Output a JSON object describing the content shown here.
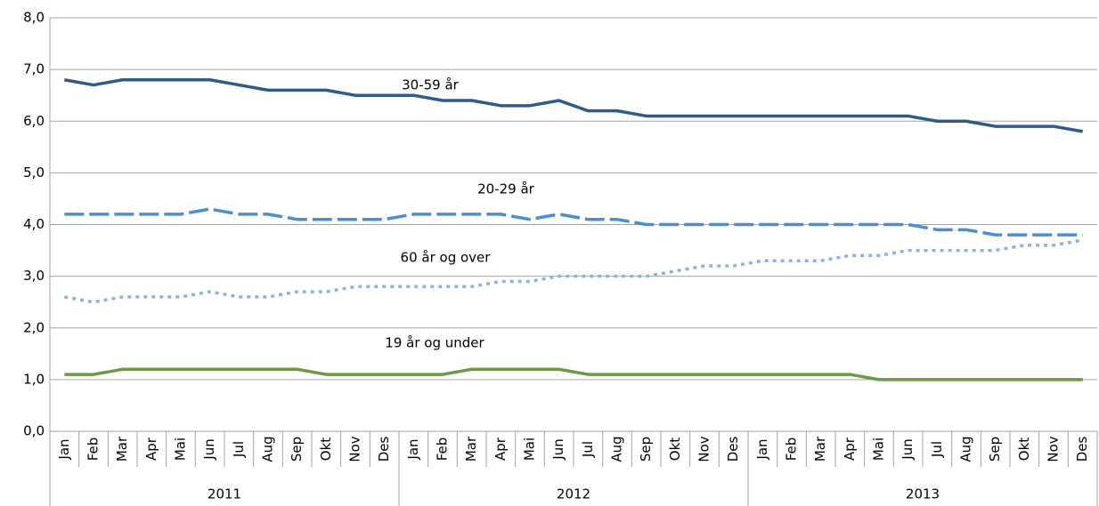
{
  "chart_data": {
    "type": "line",
    "categories": [
      "Jan",
      "Feb",
      "Mar",
      "Apr",
      "Mai",
      "Jun",
      "Jul",
      "Aug",
      "Sep",
      "Okt",
      "Nov",
      "Des",
      "Jan",
      "Feb",
      "Mar",
      "Apr",
      "Mai",
      "Jun",
      "Jul",
      "Aug",
      "Sep",
      "Okt",
      "Nov",
      "Des",
      "Jan",
      "Feb",
      "Mar",
      "Apr",
      "Mai",
      "Jun",
      "Jul",
      "Aug",
      "Sep",
      "Okt",
      "Nov",
      "Des"
    ],
    "category_groups": [
      "2011",
      "2012",
      "2013"
    ],
    "series": [
      {
        "name": "30-59 år",
        "color": "#2f5b8a",
        "line_style": "solid",
        "values": [
          6.8,
          6.7,
          6.8,
          6.8,
          6.8,
          6.8,
          6.7,
          6.6,
          6.6,
          6.6,
          6.5,
          6.5,
          6.5,
          6.4,
          6.4,
          6.3,
          6.3,
          6.4,
          6.2,
          6.2,
          6.1,
          6.1,
          6.1,
          6.1,
          6.1,
          6.1,
          6.1,
          6.1,
          6.1,
          6.1,
          6.0,
          6.0,
          5.9,
          5.9,
          5.9,
          5.8
        ]
      },
      {
        "name": "20-29 år",
        "color": "#4a8fd0",
        "line_style": "dashed",
        "values": [
          4.2,
          4.2,
          4.2,
          4.2,
          4.2,
          4.3,
          4.2,
          4.2,
          4.1,
          4.1,
          4.1,
          4.1,
          4.2,
          4.2,
          4.2,
          4.2,
          4.1,
          4.2,
          4.1,
          4.1,
          4.0,
          4.0,
          4.0,
          4.0,
          4.0,
          4.0,
          4.0,
          4.0,
          4.0,
          4.0,
          3.9,
          3.9,
          3.8,
          3.8,
          3.8,
          3.8
        ]
      },
      {
        "name": "60 år og over",
        "color": "#8fb2de",
        "line_style": "dotted",
        "values": [
          2.6,
          2.5,
          2.6,
          2.6,
          2.6,
          2.7,
          2.6,
          2.6,
          2.7,
          2.7,
          2.8,
          2.8,
          2.8,
          2.8,
          2.8,
          2.9,
          2.9,
          3.0,
          3.0,
          3.0,
          3.0,
          3.1,
          3.2,
          3.2,
          3.3,
          3.3,
          3.3,
          3.4,
          3.4,
          3.5,
          3.5,
          3.5,
          3.5,
          3.6,
          3.6,
          3.7
        ]
      },
      {
        "name": "19 år og under",
        "color": "#6e9a48",
        "line_style": "solid",
        "values": [
          1.1,
          1.1,
          1.2,
          1.2,
          1.2,
          1.2,
          1.2,
          1.2,
          1.2,
          1.1,
          1.1,
          1.1,
          1.1,
          1.1,
          1.2,
          1.2,
          1.2,
          1.2,
          1.1,
          1.1,
          1.1,
          1.1,
          1.1,
          1.1,
          1.1,
          1.1,
          1.1,
          1.1,
          1.0,
          1.0,
          1.0,
          1.0,
          1.0,
          1.0,
          1.0,
          1.0
        ]
      }
    ],
    "ylim": [
      0,
      8
    ],
    "yticks": [
      {
        "value": 0,
        "label": "0,0"
      },
      {
        "value": 1,
        "label": "1,0"
      },
      {
        "value": 2,
        "label": "2,0"
      },
      {
        "value": 3,
        "label": "3,0"
      },
      {
        "value": 4,
        "label": "4,0"
      },
      {
        "value": 5,
        "label": "5,0"
      },
      {
        "value": 6,
        "label": "6,0"
      },
      {
        "value": 7,
        "label": "7,0"
      },
      {
        "value": 8,
        "label": "8,0"
      }
    ],
    "grid": true
  }
}
